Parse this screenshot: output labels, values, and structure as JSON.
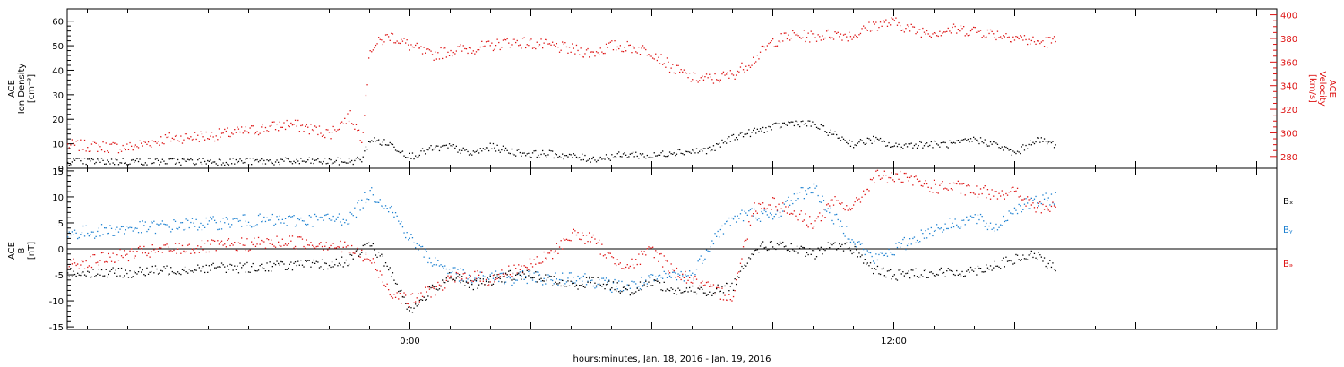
{
  "xlabel": "hours:minutes, Jan. 18, 2016 - Jan. 19, 2016",
  "x_ticks": [
    {
      "hour": 0,
      "label": "0:00"
    },
    {
      "hour": 12,
      "label": "12:00"
    }
  ],
  "x_range_hours": [
    -8.5,
    21.5
  ],
  "chart_data": [
    {
      "type": "scatter",
      "panel": "top",
      "ylabel_left": [
        "ACE",
        "Ion Density",
        "[cm⁻³]"
      ],
      "ylabel_right": [
        "ACE",
        "Velocity",
        "[km/s]"
      ],
      "left_axis": {
        "range": [
          0,
          65
        ],
        "ticks": [
          0,
          10,
          20,
          30,
          40,
          50,
          60
        ],
        "labels": [
          "0",
          "10",
          "20",
          "30",
          "40",
          "50",
          "60"
        ]
      },
      "right_axis": {
        "range": [
          270,
          405
        ],
        "ticks": [
          280,
          300,
          320,
          340,
          360,
          380,
          400
        ],
        "labels": [
          "280",
          "300",
          "320",
          "340",
          "360",
          "380",
          "400"
        ]
      },
      "series": [
        {
          "axis": "left",
          "color": "#000000",
          "x": [
            -8.5,
            -7,
            -5,
            -4,
            -3,
            -1.5,
            -1.2,
            -1,
            -0.5,
            0,
            0.5,
            1,
            1.5,
            2,
            2.5,
            3,
            3.5,
            4,
            4.5,
            5,
            5.5,
            6,
            6.5,
            7,
            7.5,
            8,
            8.5,
            9,
            9.5,
            10,
            10.5,
            11,
            11.5,
            12,
            12.5,
            13,
            13.5,
            14,
            14.5,
            15,
            15.5,
            16
          ],
          "y": [
            3,
            3,
            3,
            3,
            3,
            3,
            4,
            12,
            10,
            5,
            8,
            9,
            6,
            9,
            7,
            6,
            6,
            5,
            4,
            5,
            6,
            5,
            7,
            7,
            8,
            13,
            15,
            17,
            19,
            18,
            14,
            10,
            12,
            9,
            10,
            10,
            10,
            12,
            10,
            6,
            12,
            10
          ]
        },
        {
          "axis": "right",
          "color": "#dd1111",
          "x": [
            -8.5,
            -7,
            -6,
            -5,
            -4,
            -3,
            -2,
            -1.5,
            -1.2,
            -1,
            -0.5,
            0,
            0.5,
            1,
            1.5,
            2,
            2.5,
            3,
            3.5,
            4,
            4.5,
            5,
            5.5,
            6,
            6.5,
            7,
            7.5,
            8,
            8.5,
            9,
            9.5,
            10,
            10.5,
            11,
            11.5,
            12,
            12.5,
            13,
            13.5,
            14,
            14.5,
            15,
            15.5,
            16
          ],
          "y": [
            290,
            288,
            296,
            298,
            302,
            308,
            300,
            315,
            296,
            372,
            383,
            374,
            366,
            370,
            372,
            374,
            378,
            376,
            374,
            371,
            368,
            374,
            373,
            369,
            355,
            347,
            346,
            350,
            362,
            378,
            383,
            382,
            384,
            383,
            392,
            394,
            387,
            386,
            388,
            387,
            384,
            382,
            377,
            378
          ]
        }
      ]
    },
    {
      "type": "scatter",
      "panel": "bottom",
      "ylabel_left": [
        "ACE",
        "B",
        "[nT]"
      ],
      "y_axis": {
        "range": [
          -15.5,
          15.5
        ],
        "ticks": [
          -15,
          -10,
          -5,
          0,
          5,
          10,
          15
        ],
        "labels": [
          "-15",
          "-10",
          "-5",
          "0",
          "5",
          "10",
          "15"
        ]
      },
      "zero_line": true,
      "legend": [
        {
          "text": "Bₓ",
          "color": "#000000"
        },
        {
          "text": "Bᵧ",
          "color": "#1a7fd0"
        },
        {
          "text": "Bₔ",
          "color": "#dd1111"
        }
      ],
      "series": [
        {
          "name": "Bₓ",
          "color": "#000000",
          "x": [
            -8.5,
            -7,
            -6,
            -5,
            -4,
            -3,
            -2,
            -1.5,
            -1,
            -0.5,
            0,
            0.5,
            1,
            1.5,
            2,
            2.5,
            3,
            3.5,
            4,
            4.5,
            5,
            5.5,
            6,
            6.5,
            7,
            7.5,
            8,
            8.5,
            9,
            9.5,
            10,
            10.5,
            11,
            11.5,
            12,
            12.5,
            13,
            13.5,
            14,
            14.5,
            15,
            15.5,
            16
          ],
          "y": [
            -4.5,
            -4.5,
            -4,
            -3.5,
            -3.5,
            -3,
            -3,
            -2,
            1,
            -4,
            -12,
            -8,
            -5,
            -7,
            -6,
            -5,
            -5,
            -6,
            -7,
            -6,
            -7,
            -8,
            -6,
            -8,
            -8,
            -8,
            -7,
            0,
            1,
            0,
            -1,
            1,
            0,
            -4,
            -5,
            -4.5,
            -4.5,
            -4.5,
            -4,
            -3,
            -2,
            -1,
            -4
          ]
        },
        {
          "name": "Bᵧ",
          "color": "#1a7fd0",
          "x": [
            -8.5,
            -7,
            -6,
            -5,
            -4,
            -3,
            -2,
            -1.5,
            -1,
            -0.5,
            0,
            0.5,
            1,
            1.5,
            2,
            2.5,
            3,
            3.5,
            4,
            4.5,
            5,
            5.5,
            6,
            6.5,
            7,
            7.5,
            8,
            8.5,
            9,
            9.5,
            10,
            10.5,
            11,
            11.5,
            12,
            12.5,
            13,
            13.5,
            14,
            14.5,
            15,
            15.5,
            16
          ],
          "y": [
            3,
            4,
            4.5,
            5,
            5.5,
            5.5,
            5.8,
            6,
            11,
            8,
            2,
            -2,
            -4,
            -6,
            -5,
            -6,
            -5,
            -6,
            -5,
            -6,
            -7,
            -7,
            -6,
            -5,
            -5,
            2,
            6,
            7,
            6,
            10,
            12,
            6,
            2,
            -2,
            0,
            2,
            4,
            5,
            6,
            4,
            8,
            9,
            10
          ]
        },
        {
          "name": "Bₔ",
          "color": "#dd1111",
          "x": [
            -8.5,
            -7,
            -6,
            -5,
            -4,
            -3,
            -2,
            -1.5,
            -1,
            -0.5,
            0,
            0.5,
            1,
            1.5,
            2,
            2.5,
            3,
            3.5,
            4,
            4.5,
            5,
            5.5,
            6,
            6.5,
            7,
            7.5,
            8,
            8.5,
            9,
            9.5,
            10,
            10.5,
            11,
            11.5,
            12,
            12.5,
            13,
            13.5,
            14,
            14.5,
            15,
            15.5,
            16
          ],
          "y": [
            -3,
            -1,
            0,
            0.5,
            1,
            1.5,
            1,
            0,
            -2,
            -8,
            -10,
            -8,
            -6,
            -5,
            -6,
            -4,
            -3,
            -1,
            3,
            2,
            -2,
            -3,
            0,
            -4,
            -6,
            -8,
            -9,
            8,
            9,
            7,
            5,
            9,
            8,
            14,
            14,
            13,
            12,
            12,
            11,
            11,
            11,
            8,
            8
          ]
        }
      ]
    }
  ]
}
